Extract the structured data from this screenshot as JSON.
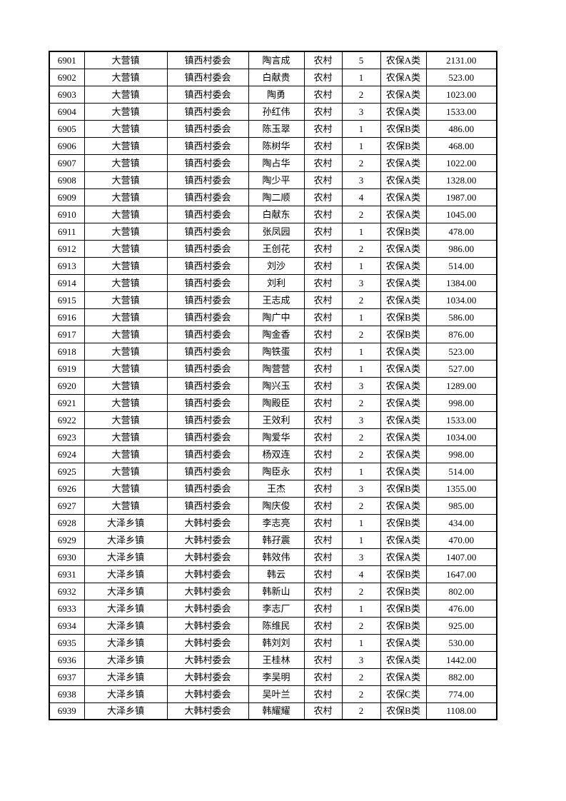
{
  "table": {
    "border_color": "#000000",
    "column_keys": [
      "serial",
      "town",
      "village",
      "name",
      "residence",
      "count",
      "category",
      "amount"
    ],
    "rows": [
      [
        "6901",
        "大营镇",
        "镇西村委会",
        "陶言成",
        "农村",
        "5",
        "农保A类",
        "2131.00"
      ],
      [
        "6902",
        "大营镇",
        "镇西村委会",
        "白献贵",
        "农村",
        "1",
        "农保A类",
        "523.00"
      ],
      [
        "6903",
        "大营镇",
        "镇西村委会",
        "陶勇",
        "农村",
        "2",
        "农保A类",
        "1023.00"
      ],
      [
        "6904",
        "大营镇",
        "镇西村委会",
        "孙红伟",
        "农村",
        "3",
        "农保A类",
        "1533.00"
      ],
      [
        "6905",
        "大营镇",
        "镇西村委会",
        "陈玉翠",
        "农村",
        "1",
        "农保B类",
        "486.00"
      ],
      [
        "6906",
        "大营镇",
        "镇西村委会",
        "陈树华",
        "农村",
        "1",
        "农保B类",
        "468.00"
      ],
      [
        "6907",
        "大营镇",
        "镇西村委会",
        "陶占华",
        "农村",
        "2",
        "农保A类",
        "1022.00"
      ],
      [
        "6908",
        "大营镇",
        "镇西村委会",
        "陶少平",
        "农村",
        "3",
        "农保A类",
        "1328.00"
      ],
      [
        "6909",
        "大营镇",
        "镇西村委会",
        "陶二顺",
        "农村",
        "4",
        "农保A类",
        "1987.00"
      ],
      [
        "6910",
        "大营镇",
        "镇西村委会",
        "白献东",
        "农村",
        "2",
        "农保A类",
        "1045.00"
      ],
      [
        "6911",
        "大营镇",
        "镇西村委会",
        "张凤园",
        "农村",
        "1",
        "农保B类",
        "478.00"
      ],
      [
        "6912",
        "大营镇",
        "镇西村委会",
        "王创花",
        "农村",
        "2",
        "农保A类",
        "986.00"
      ],
      [
        "6913",
        "大营镇",
        "镇西村委会",
        "刘沙",
        "农村",
        "1",
        "农保A类",
        "514.00"
      ],
      [
        "6914",
        "大营镇",
        "镇西村委会",
        "刘利",
        "农村",
        "3",
        "农保A类",
        "1384.00"
      ],
      [
        "6915",
        "大营镇",
        "镇西村委会",
        "王志成",
        "农村",
        "2",
        "农保A类",
        "1034.00"
      ],
      [
        "6916",
        "大营镇",
        "镇西村委会",
        "陶广中",
        "农村",
        "1",
        "农保B类",
        "586.00"
      ],
      [
        "6917",
        "大营镇",
        "镇西村委会",
        "陶金香",
        "农村",
        "2",
        "农保B类",
        "876.00"
      ],
      [
        "6918",
        "大营镇",
        "镇西村委会",
        "陶铁蛋",
        "农村",
        "1",
        "农保A类",
        "523.00"
      ],
      [
        "6919",
        "大营镇",
        "镇西村委会",
        "陶营营",
        "农村",
        "1",
        "农保A类",
        "527.00"
      ],
      [
        "6920",
        "大营镇",
        "镇西村委会",
        "陶兴玉",
        "农村",
        "3",
        "农保A类",
        "1289.00"
      ],
      [
        "6921",
        "大营镇",
        "镇西村委会",
        "陶殿臣",
        "农村",
        "2",
        "农保A类",
        "998.00"
      ],
      [
        "6922",
        "大营镇",
        "镇西村委会",
        "王效利",
        "农村",
        "3",
        "农保A类",
        "1533.00"
      ],
      [
        "6923",
        "大营镇",
        "镇西村委会",
        "陶爱华",
        "农村",
        "2",
        "农保A类",
        "1034.00"
      ],
      [
        "6924",
        "大营镇",
        "镇西村委会",
        "杨双连",
        "农村",
        "2",
        "农保A类",
        "998.00"
      ],
      [
        "6925",
        "大营镇",
        "镇西村委会",
        "陶臣永",
        "农村",
        "1",
        "农保A类",
        "514.00"
      ],
      [
        "6926",
        "大营镇",
        "镇西村委会",
        "王杰",
        "农村",
        "3",
        "农保B类",
        "1355.00"
      ],
      [
        "6927",
        "大营镇",
        "镇西村委会",
        "陶庆俊",
        "农村",
        "2",
        "农保A类",
        "985.00"
      ],
      [
        "6928",
        "大泽乡镇",
        "大韩村委会",
        "李志亮",
        "农村",
        "1",
        "农保B类",
        "434.00"
      ],
      [
        "6929",
        "大泽乡镇",
        "大韩村委会",
        "韩孖震",
        "农村",
        "1",
        "农保A类",
        "470.00"
      ],
      [
        "6930",
        "大泽乡镇",
        "大韩村委会",
        "韩效伟",
        "农村",
        "3",
        "农保A类",
        "1407.00"
      ],
      [
        "6931",
        "大泽乡镇",
        "大韩村委会",
        "韩云",
        "农村",
        "4",
        "农保B类",
        "1647.00"
      ],
      [
        "6932",
        "大泽乡镇",
        "大韩村委会",
        "韩新山",
        "农村",
        "2",
        "农保B类",
        "802.00"
      ],
      [
        "6933",
        "大泽乡镇",
        "大韩村委会",
        "李志厂",
        "农村",
        "1",
        "农保B类",
        "476.00"
      ],
      [
        "6934",
        "大泽乡镇",
        "大韩村委会",
        "陈维民",
        "农村",
        "2",
        "农保B类",
        "925.00"
      ],
      [
        "6935",
        "大泽乡镇",
        "大韩村委会",
        "韩刘刘",
        "农村",
        "1",
        "农保A类",
        "530.00"
      ],
      [
        "6936",
        "大泽乡镇",
        "大韩村委会",
        "王桂林",
        "农村",
        "3",
        "农保A类",
        "1442.00"
      ],
      [
        "6937",
        "大泽乡镇",
        "大韩村委会",
        "李吴明",
        "农村",
        "2",
        "农保A类",
        "882.00"
      ],
      [
        "6938",
        "大泽乡镇",
        "大韩村委会",
        "吴叶兰",
        "农村",
        "2",
        "农保C类",
        "774.00"
      ],
      [
        "6939",
        "大泽乡镇",
        "大韩村委会",
        "韩耀耀",
        "农村",
        "2",
        "农保B类",
        "1108.00"
      ]
    ]
  }
}
